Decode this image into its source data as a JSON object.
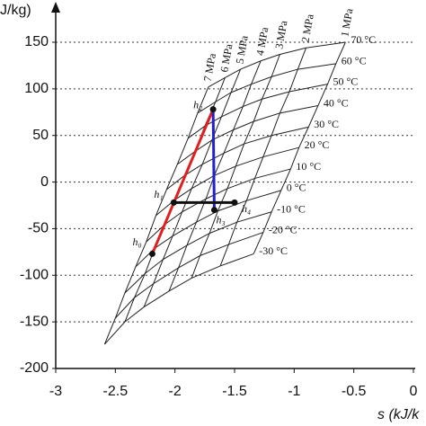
{
  "chart_data": {
    "type": "line",
    "y_label": "J/kg)",
    "x_label": "s (kJ/k",
    "xlim": [
      -3,
      0
    ],
    "ylim": [
      -200,
      150
    ],
    "xticks": [
      -3,
      -2.5,
      -2,
      -1.5,
      -1,
      -0.5,
      0
    ],
    "yticks": [
      -200,
      -150,
      -100,
      -50,
      0,
      50,
      100,
      150
    ],
    "grid": true,
    "isotherms": [
      "-30 °C",
      "-20 °C",
      "-10 °C",
      "0 °C",
      "10 °C",
      "20 °C",
      "30 °C",
      "40 °C",
      "50 °C",
      "60 °C",
      "70 °C"
    ],
    "isobars": [
      {
        "name": "7 MPa",
        "s": [
          -2.59,
          -2.5,
          -2.42,
          -2.33,
          -2.24,
          -2.16,
          -2.07,
          -1.98,
          -1.89,
          -1.81,
          -1.72
        ],
        "h": [
          -174,
          -146,
          -119,
          -91,
          -64,
          -36,
          -8,
          19,
          47,
          74,
          102
        ]
      },
      {
        "name": "6 MPa",
        "s": [
          -2.42,
          -2.34,
          -2.25,
          -2.17,
          -2.08,
          -2.0,
          -1.92,
          -1.83,
          -1.75,
          -1.66,
          -1.58
        ],
        "h": [
          -150,
          -124,
          -98,
          -71,
          -45,
          -19,
          7,
          33,
          60,
          86,
          112
        ]
      },
      {
        "name": "5 MPa",
        "s": [
          -2.26,
          -2.18,
          -2.1,
          -2.02,
          -1.94,
          -1.86,
          -1.77,
          -1.69,
          -1.61,
          -1.53,
          -1.45
        ],
        "h": [
          -134,
          -109,
          -83,
          -58,
          -32,
          -7,
          19,
          45,
          70,
          96,
          121
        ]
      },
      {
        "name": "4 MPa",
        "s": [
          -2.05,
          -1.97,
          -1.9,
          -1.82,
          -1.74,
          -1.67,
          -1.59,
          -1.51,
          -1.43,
          -1.36,
          -1.28
        ],
        "h": [
          -117,
          -92,
          -68,
          -43,
          -18,
          7,
          31,
          56,
          81,
          105,
          130
        ]
      },
      {
        "name": "3 MPa",
        "s": [
          -1.86,
          -1.79,
          -1.71,
          -1.64,
          -1.56,
          -1.49,
          -1.42,
          -1.34,
          -1.27,
          -1.19,
          -1.12
        ],
        "h": [
          -103,
          -79,
          -55,
          -31,
          -7,
          17,
          41,
          65,
          89,
          113,
          137
        ]
      },
      {
        "name": "2 MPa",
        "s": [
          -1.62,
          -1.55,
          -1.48,
          -1.4,
          -1.33,
          -1.26,
          -1.19,
          -1.12,
          -1.04,
          -0.97,
          -0.9
        ],
        "h": [
          -90,
          -67,
          -43,
          -20,
          4,
          27,
          50,
          74,
          97,
          121,
          144
        ]
      },
      {
        "name": "1 MPa",
        "s": [
          -1.34,
          -1.26,
          -1.19,
          -1.11,
          -1.03,
          -0.96,
          -0.88,
          -0.8,
          -0.72,
          -0.65,
          -0.57
        ],
        "h": [
          -77,
          -54,
          -32,
          -9,
          14,
          37,
          59,
          82,
          105,
          127,
          150
        ]
      }
    ],
    "points": [
      {
        "name": "h₀",
        "s": -2.19,
        "h": -77
      },
      {
        "name": "h₁",
        "s": -2.01,
        "h": -22
      },
      {
        "name": "h₂",
        "s": -1.68,
        "h": 78
      },
      {
        "name": "h₃",
        "s": -1.67,
        "h": -30
      },
      {
        "name": "h₄",
        "s": -1.5,
        "h": -22
      }
    ],
    "segments": [
      {
        "from": 0,
        "to": 2,
        "color": "#e02020"
      },
      {
        "from": 2,
        "to": 3,
        "color": "#2222cc"
      },
      {
        "from": 1,
        "to": 4,
        "color": "#111111"
      }
    ]
  }
}
